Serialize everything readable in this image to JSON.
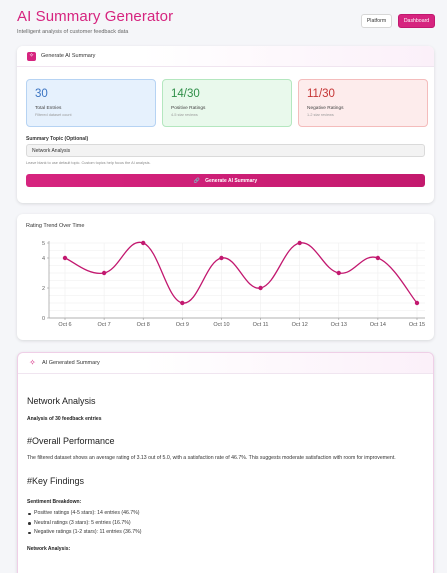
{
  "header": {
    "title": "AI Summary Generator",
    "subtitle": "Intelligent analysis of customer feedback data"
  },
  "nav": {
    "platform_label": "Platform",
    "dashboard_label": "Dashboard"
  },
  "generate_card": {
    "title": "Generate AI Summary",
    "icon": "sparkle-icon",
    "stats": [
      {
        "value": "30",
        "label": "Total Entries",
        "sub": "Filtered dataset count"
      },
      {
        "value": "14/30",
        "label": "Positive Ratings",
        "sub": "4-5 star reviews"
      },
      {
        "value": "11/30",
        "label": "Negative Ratings",
        "sub": "1-2 star reviews"
      }
    ],
    "topic_label": "Summary Topic (Optional)",
    "topic_value": "Network Analysis",
    "topic_hint": "Leave blank to use default topic. Custom topics help focus the AI analysis.",
    "button_label": "Generate AI Summary"
  },
  "chart_card": {
    "title": "Rating Trend Over Time"
  },
  "chart_data": {
    "type": "line",
    "title": "Rating Trend Over Time",
    "x": [
      "Oct 6",
      "Oct 7",
      "Oct 8",
      "Oct 9",
      "Oct 10",
      "Oct 11",
      "Oct 12",
      "Oct 13",
      "Oct 14",
      "Oct 15"
    ],
    "series": [
      {
        "values": [
          4,
          3,
          5,
          1,
          4,
          2,
          5,
          3,
          4,
          1
        ]
      }
    ],
    "yticks": [
      0,
      2,
      4,
      5
    ],
    "ylim": [
      0,
      5
    ],
    "grid": true,
    "color": "#c2186f"
  },
  "summary_card": {
    "title": "AI Generated Summary",
    "heading": "Network Analysis",
    "analysis_line": "Analysis of 30 feedback entries",
    "overall_heading": "#Overall Performance",
    "overall_text": "The filtered dataset shows an average rating of 3.13 out of 5.0, with a satisfaction rate of 46.7%. This suggests moderate satisfaction with room for improvement.",
    "key_heading": "#Key Findings",
    "sentiment_heading": "Sentiment Breakdown:",
    "sentiment_items": [
      "Positive ratings (4-5 stars): 14 entries (46.7%)",
      "Neutral ratings (3 stars): 5 entries (16.7%)",
      "Negative ratings (1-2 stars): 11 entries (36.7%)"
    ],
    "next_heading": "Network Analysis:"
  }
}
